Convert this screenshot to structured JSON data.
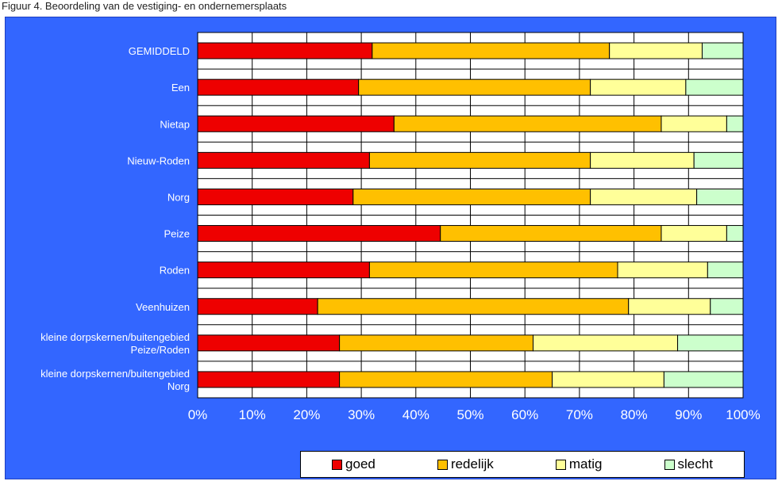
{
  "header": {
    "caption": "Figuur 4. Beoordeling van de vestiging- en ondernemersplaats"
  },
  "chart_data": {
    "type": "bar",
    "orientation": "horizontal",
    "stacked": "percent",
    "categories": [
      "GEMIDDELD",
      "Een",
      "Nietap",
      "Nieuw-Roden",
      "Norg",
      "Peize",
      "Roden",
      "Veenhuizen",
      "kleine dorpskernen/buitengebied\nPeize/Roden",
      "kleine dorpskernen/buitengebied\nNorg"
    ],
    "series": [
      {
        "name": "goed",
        "color": "#ee0000",
        "values": [
          32,
          29.5,
          36,
          31.5,
          28.5,
          44.5,
          31.5,
          22,
          26,
          26
        ]
      },
      {
        "name": "redelijk",
        "color": "#ffc000",
        "values": [
          43.5,
          42.5,
          49,
          40.5,
          43.5,
          40.5,
          45.5,
          57,
          35.5,
          39
        ]
      },
      {
        "name": "matig",
        "color": "#ffff99",
        "values": [
          17,
          17.5,
          12,
          19,
          19.5,
          12,
          16.5,
          15,
          26.5,
          20.5
        ]
      },
      {
        "name": "slecht",
        "color": "#ccffcc",
        "values": [
          7.5,
          10.5,
          3,
          9,
          8.5,
          3,
          6.5,
          6,
          12,
          14.5
        ]
      }
    ],
    "xlim": [
      0,
      100
    ],
    "xticks": [
      "0%",
      "10%",
      "20%",
      "30%",
      "40%",
      "50%",
      "60%",
      "70%",
      "80%",
      "90%",
      "100%"
    ],
    "grid": true,
    "legend_position": "bottom-right",
    "colors": {
      "background": "#3366ff",
      "plot": "#ffffff"
    }
  }
}
